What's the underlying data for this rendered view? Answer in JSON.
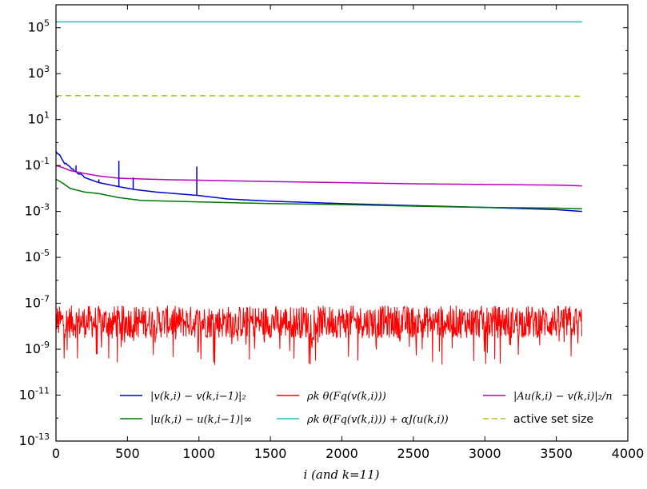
{
  "chart_data": {
    "type": "line",
    "xlabel": "i (and k=11)",
    "ylabel": "",
    "title": "",
    "xlim": [
      0,
      4000
    ],
    "ylim_log10": [
      -13,
      6
    ],
    "yscale": "log",
    "xticks": [
      0,
      500,
      1000,
      1500,
      2000,
      2500,
      3000,
      3500,
      4000
    ],
    "yticks_exp": [
      -13,
      -11,
      -9,
      -7,
      -5,
      -3,
      -1,
      1,
      3,
      5
    ],
    "legend": "lower center",
    "grid": false,
    "series": [
      {
        "name": "|v^(k,i) − v^(k,i−1)|_2",
        "color": "#0000cc",
        "style": "solid",
        "x": [
          0,
          20,
          50,
          80,
          100,
          150,
          200,
          300,
          440,
          550,
          700,
          990,
          1200,
          1500,
          2000,
          2500,
          3000,
          3500,
          3680
        ],
        "y": [
          0.4,
          0.3,
          0.15,
          0.1,
          0.08,
          0.05,
          0.03,
          0.018,
          0.012,
          0.009,
          0.007,
          0.005,
          0.0035,
          0.0028,
          0.0022,
          0.0018,
          0.0015,
          0.0012,
          0.001
        ]
      },
      {
        "name": "|u^(k,i) − u^(k,i−1)|_∞",
        "color": "#007700",
        "style": "solid",
        "x": [
          0,
          30,
          60,
          100,
          200,
          300,
          440,
          600,
          800,
          1000,
          1500,
          2000,
          2500,
          3000,
          3500,
          3680
        ],
        "y": [
          0.025,
          0.02,
          0.015,
          0.01,
          0.007,
          0.006,
          0.004,
          0.003,
          0.0028,
          0.0026,
          0.0022,
          0.002,
          0.0017,
          0.0015,
          0.0014,
          0.0013
        ]
      },
      {
        "name": "ρ_k θ(F_q(v^(k,i)))",
        "color": "#ff0000",
        "style": "noise",
        "x": [
          0,
          3680
        ],
        "y_typical": [
          3e-09,
          8e-08
        ],
        "y_min": 2e-10
      },
      {
        "name": "ρ_k θ(F_q(v^(k,i))) + αJ(u^(k,i))",
        "color": "#22bbbb",
        "style": "solid",
        "x": [
          0,
          3680
        ],
        "y": [
          180000,
          180000
        ]
      },
      {
        "name": "|Au^(k,i) − v^(k,i)|_2 / n",
        "color": "#bb00bb",
        "style": "solid",
        "x": [
          0,
          50,
          100,
          200,
          300,
          440,
          600,
          800,
          1000,
          1500,
          2000,
          2500,
          3000,
          3500,
          3680
        ],
        "y": [
          0.1,
          0.08,
          0.06,
          0.045,
          0.035,
          0.028,
          0.026,
          0.024,
          0.023,
          0.02,
          0.018,
          0.016,
          0.015,
          0.014,
          0.013
        ]
      },
      {
        "name": "active set size",
        "color": "#bbbb22",
        "style": "dashed",
        "x": [
          0,
          3680
        ],
        "y": [
          110,
          105
        ]
      }
    ],
    "spikes": {
      "series": "|v^(k,i) − v^(k,i−1)|_2",
      "x": [
        140,
        300,
        440,
        540,
        985
      ],
      "peak": [
        0.1,
        0.025,
        0.16,
        0.03,
        0.09
      ]
    }
  },
  "legend_entries": [
    {
      "label": "|v(k,i) − v(k,i−1)|₂",
      "color": "#0000cc",
      "dash": false
    },
    {
      "label": "|u(k,i) − u(k,i−1)|∞",
      "color": "#007700",
      "dash": false
    },
    {
      "label": "ρk θ(Fq(v(k,i)))",
      "color": "#ff0000",
      "dash": false
    },
    {
      "label": "ρk θ(Fq(v(k,i))) + αJ(u(k,i))",
      "color": "#22bbbb",
      "dash": false
    },
    {
      "label": "|Au(k,i) − v(k,i)|₂/n",
      "color": "#bb00bb",
      "dash": false
    },
    {
      "label": "active set size",
      "color": "#bbbb22",
      "dash": true
    }
  ]
}
